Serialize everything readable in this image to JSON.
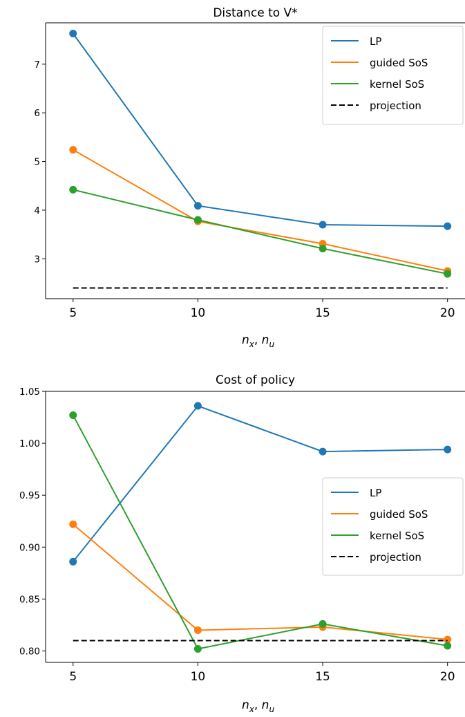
{
  "chart_data": [
    {
      "type": "line",
      "title": "Distance to V*",
      "xlabel": "n_x, n_u",
      "xlabel_parts": {
        "a": "n",
        "a_sub": "x",
        "sep": ", ",
        "b": "n",
        "b_sub": "u"
      },
      "x": [
        5,
        10,
        15,
        20
      ],
      "xticks": [
        "5",
        "10",
        "15",
        "20"
      ],
      "yticks": [
        "3",
        "4",
        "5",
        "6",
        "7"
      ],
      "xlim": [
        3.9,
        20.7
      ],
      "ylim": [
        2.18,
        7.85
      ],
      "grid": false,
      "legend_position": "top-right",
      "series": [
        {
          "name": "LP",
          "color": "#1f77b4",
          "style": "solid",
          "markers": true,
          "values": [
            7.63,
            4.09,
            3.7,
            3.67
          ]
        },
        {
          "name": "guided SoS",
          "color": "#ff7f0e",
          "style": "solid",
          "markers": true,
          "values": [
            5.24,
            3.77,
            3.31,
            2.75
          ]
        },
        {
          "name": "kernel SoS",
          "color": "#2ca02c",
          "style": "solid",
          "markers": true,
          "values": [
            4.42,
            3.8,
            3.21,
            2.69
          ]
        },
        {
          "name": "projection",
          "color": "#000000",
          "style": "dashed",
          "markers": false,
          "values": [
            2.4,
            2.4,
            2.4,
            2.4
          ]
        }
      ]
    },
    {
      "type": "line",
      "title": "Cost of policy",
      "xlabel": "n_x, n_u",
      "xlabel_parts": {
        "a": "n",
        "a_sub": "x",
        "sep": ", ",
        "b": "n",
        "b_sub": "u"
      },
      "x": [
        5,
        10,
        15,
        20
      ],
      "xticks": [
        "5",
        "10",
        "15",
        "20"
      ],
      "yticks": [
        "0.80",
        "0.85",
        "0.90",
        "0.95",
        "1.00",
        "1.05"
      ],
      "xlim": [
        3.9,
        20.7
      ],
      "ylim": [
        0.789,
        1.05
      ],
      "grid": false,
      "legend_position": "center-right",
      "series": [
        {
          "name": "LP",
          "color": "#1f77b4",
          "style": "solid",
          "markers": true,
          "values": [
            0.886,
            1.036,
            0.992,
            0.994
          ]
        },
        {
          "name": "guided SoS",
          "color": "#ff7f0e",
          "style": "solid",
          "markers": true,
          "values": [
            0.922,
            0.82,
            0.823,
            0.811
          ]
        },
        {
          "name": "kernel SoS",
          "color": "#2ca02c",
          "style": "solid",
          "markers": true,
          "values": [
            1.027,
            0.802,
            0.826,
            0.805
          ]
        },
        {
          "name": "projection",
          "color": "#000000",
          "style": "dashed",
          "markers": false,
          "values": [
            0.81,
            0.81,
            0.81,
            0.81
          ]
        }
      ]
    }
  ]
}
